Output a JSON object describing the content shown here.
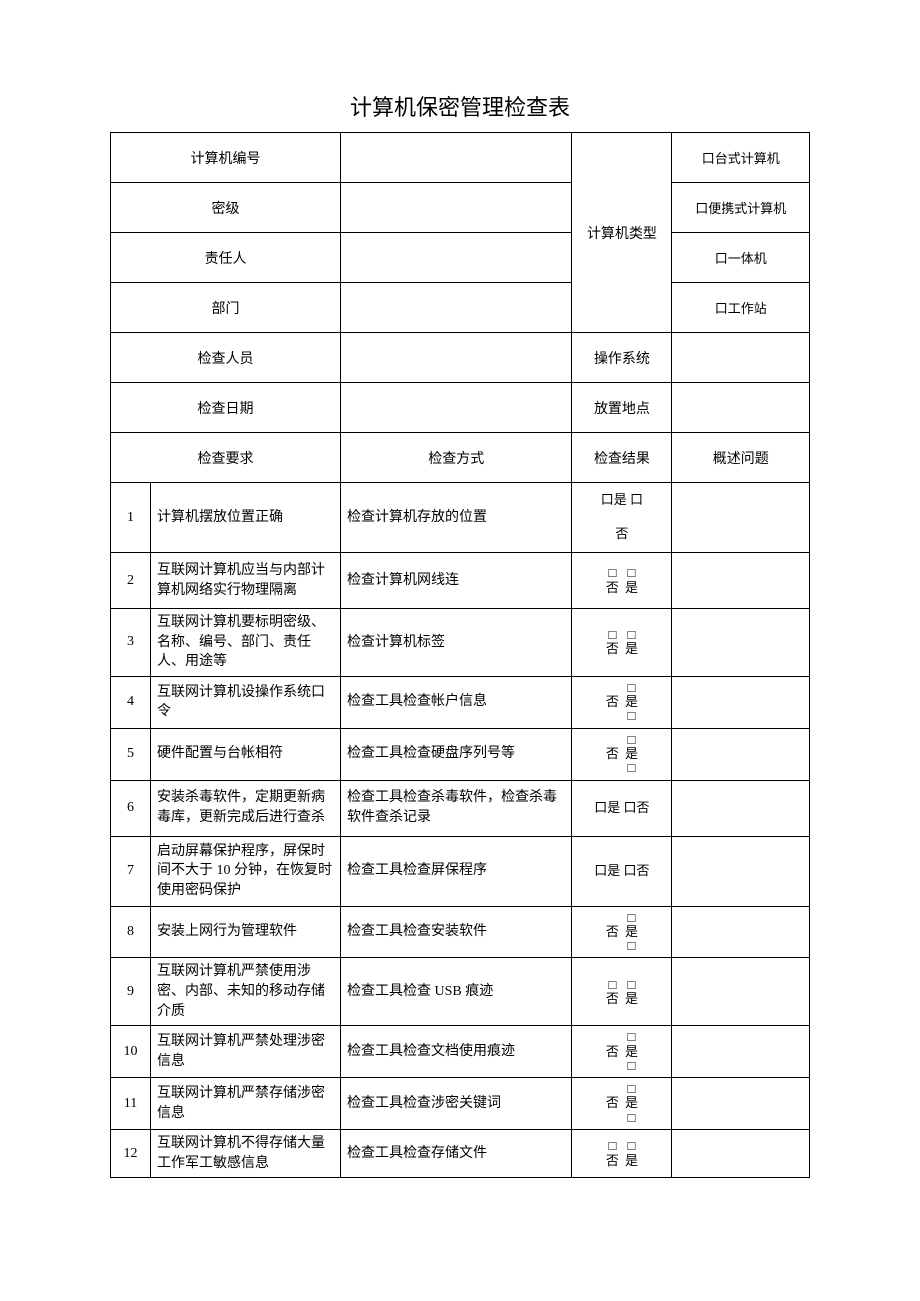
{
  "title": "计算机保密管理检查表",
  "header": {
    "computer_id_label": "计算机编号",
    "secret_level_label": "密级",
    "responsible_label": "责任人",
    "department_label": "部门",
    "inspector_label": "检查人员",
    "inspect_date_label": "检查日期",
    "computer_type_label": "计算机类型",
    "os_label": "操作系统",
    "location_label": "放置地点",
    "type_options": {
      "desktop": "口台式计算机",
      "laptop": "口便携式计算机",
      "aio": "口一体机",
      "workstation": "口工作站"
    }
  },
  "section": {
    "requirement": "检查要求",
    "method": "检查方式",
    "result": "检查结果",
    "issue": "概述问题"
  },
  "rows": [
    {
      "n": "1",
      "req": "计算机摆放位置正确",
      "method": "检查计算机存放的位置",
      "result": "口是 口\n\n否"
    },
    {
      "n": "2",
      "req": "互联网计算机应当与内部计算机网络实行物理隔离",
      "method": "检查计算机网线连",
      "result_type": "pair"
    },
    {
      "n": "3",
      "req": "互联网计算机要标明密级、名称、编号、部门、责任人、用途等",
      "method": "检查计算机标签",
      "result_type": "pair"
    },
    {
      "n": "4",
      "req": "互联网计算机设操作系统口令",
      "method": "检查工具检查帐户信息",
      "result_type": "stack3"
    },
    {
      "n": "5",
      "req": "硬件配置与台帐相符",
      "method": "检查工具检查硬盘序列号等",
      "result_type": "stack3"
    },
    {
      "n": "6",
      "req": "安装杀毒软件，定期更新病毒库，更新完成后进行查杀",
      "method": "检查工具检查杀毒软件，检查杀毒软件查杀记录",
      "result": "口是 口否"
    },
    {
      "n": "7",
      "req": "启动屏幕保护程序，屏保时间不大于 10 分钟，在恢复时使用密码保护",
      "method": "检查工具检查屏保程序",
      "result": "口是 口否"
    },
    {
      "n": "8",
      "req": "安装上网行为管理软件",
      "method": "检查工具检查安装软件",
      "result_type": "stack3"
    },
    {
      "n": "9",
      "req": "互联网计算机严禁使用涉密、内部、未知的移动存储介质",
      "method": "检查工具检查 USB 痕迹",
      "result_type": "pair"
    },
    {
      "n": "10",
      "req": "互联网计算机严禁处理涉密信息",
      "method": "检查工具检查文档使用痕迹",
      "result_type": "stack3"
    },
    {
      "n": "11",
      "req": "互联网计算机严禁存储涉密信息",
      "method": "检查工具检查涉密关键词",
      "result_type": "stack3b"
    },
    {
      "n": "12",
      "req": "互联网计算机不得存储大量工作军工敏感信息",
      "method": "检查工具检查存储文件",
      "result_type": "pair"
    }
  ],
  "tokens": {
    "box": "口",
    "sq": "□",
    "no": "否",
    "yes": "是"
  },
  "style": {
    "bg": "#ffffff",
    "fg": "#000000",
    "border": "#000000",
    "title_fontsize": 22,
    "body_fontsize": 14,
    "font_family": "SimSun"
  }
}
